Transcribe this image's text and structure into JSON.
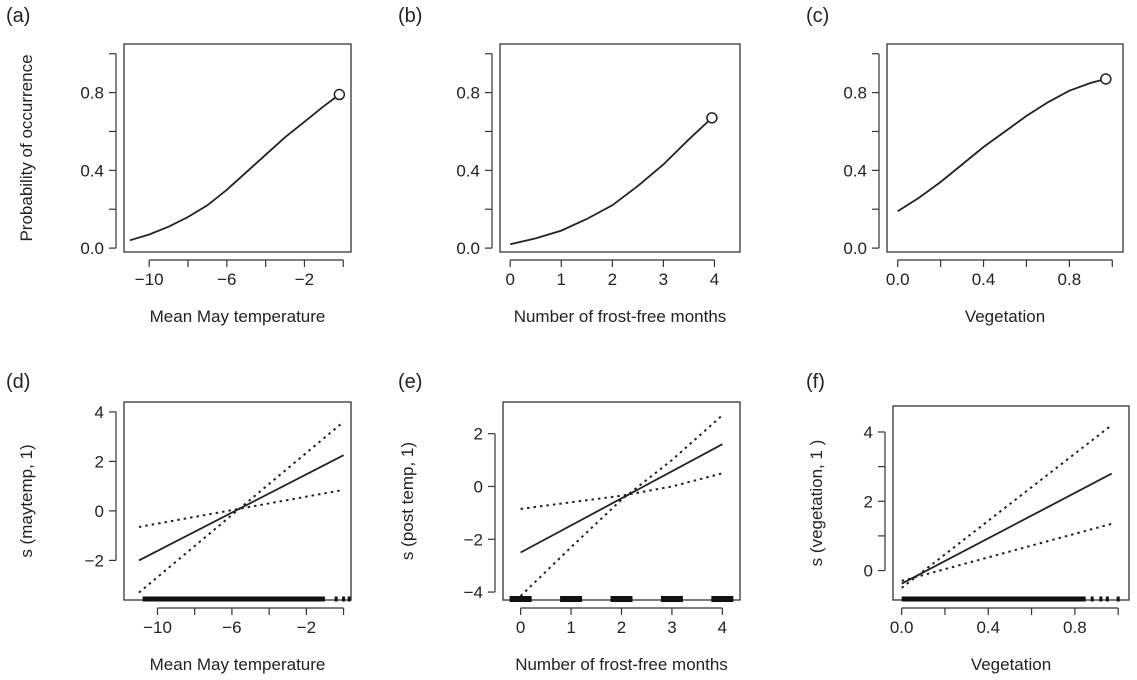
{
  "chart_data": [
    {
      "type": "line",
      "panel_label": "(a)",
      "xlabel": "Mean May temperature",
      "ylabel": "Probability of occurrence",
      "xlim": [
        -11.3,
        0.4
      ],
      "ylim": [
        -0.02,
        1.05
      ],
      "xticks": [
        -10,
        -6,
        -2
      ],
      "xtick_minor": [
        -8,
        -4,
        0
      ],
      "xtick_labels": [
        "−10",
        "−6",
        "−2"
      ],
      "yticks": [
        0.0,
        0.4,
        0.8
      ],
      "ytick_minor": [
        0.2,
        0.6,
        1.0
      ],
      "ytick_labels": [
        "0.0",
        "0.4",
        "0.8"
      ],
      "series": [
        {
          "x": [
            -11,
            -10,
            -9,
            -8,
            -7,
            -6,
            -5,
            -4,
            -3,
            -2,
            -1,
            -0.2
          ],
          "y": [
            0.04,
            0.07,
            0.11,
            0.16,
            0.22,
            0.3,
            0.39,
            0.48,
            0.57,
            0.65,
            0.73,
            0.79
          ],
          "style": "solid"
        }
      ],
      "endpoint": {
        "x": -0.2,
        "y": 0.79
      },
      "rug": false
    },
    {
      "type": "line",
      "panel_label": "(b)",
      "xlabel": "Number of frost-free months",
      "ylabel": "",
      "xlim": [
        -0.2,
        4.5
      ],
      "ylim": [
        -0.02,
        1.05
      ],
      "xticks": [
        0,
        1,
        2,
        3,
        4
      ],
      "xtick_minor": [],
      "xtick_labels": [
        "0",
        "1",
        "2",
        "3",
        "4"
      ],
      "yticks": [
        0.0,
        0.4,
        0.8
      ],
      "ytick_minor": [
        0.2,
        0.6,
        1.0
      ],
      "ytick_labels": [
        "0.0",
        "0.4",
        "0.8"
      ],
      "series": [
        {
          "x": [
            0,
            0.5,
            1,
            1.5,
            2,
            2.5,
            3,
            3.5,
            3.95
          ],
          "y": [
            0.02,
            0.05,
            0.09,
            0.15,
            0.22,
            0.32,
            0.43,
            0.56,
            0.67
          ],
          "style": "solid"
        }
      ],
      "endpoint": {
        "x": 3.95,
        "y": 0.67
      },
      "rug": false
    },
    {
      "type": "line",
      "panel_label": "(c)",
      "xlabel": "Vegetation",
      "ylabel": "",
      "xlim": [
        -0.05,
        1.05
      ],
      "ylim": [
        -0.02,
        1.05
      ],
      "xticks": [
        0.0,
        0.4,
        0.8
      ],
      "xtick_minor": [
        0.2,
        0.6,
        1.0
      ],
      "xtick_labels": [
        "0.0",
        "0.4",
        "0.8"
      ],
      "yticks": [
        0.0,
        0.4,
        0.8
      ],
      "ytick_minor": [
        0.2,
        0.6,
        1.0
      ],
      "ytick_labels": [
        "0.0",
        "0.4",
        "0.8"
      ],
      "series": [
        {
          "x": [
            0,
            0.1,
            0.2,
            0.3,
            0.4,
            0.5,
            0.6,
            0.7,
            0.8,
            0.9,
            0.97
          ],
          "y": [
            0.19,
            0.26,
            0.34,
            0.43,
            0.52,
            0.6,
            0.68,
            0.75,
            0.81,
            0.85,
            0.87
          ],
          "style": "solid"
        }
      ],
      "endpoint": {
        "x": 0.97,
        "y": 0.87
      },
      "rug": false
    },
    {
      "type": "line",
      "panel_label": "(d)",
      "xlabel": "Mean May temperature",
      "ylabel": "s (maytemp, 1)",
      "xlim": [
        -11.8,
        0.4
      ],
      "ylim": [
        -3.6,
        4.4
      ],
      "xticks": [
        -10,
        -6,
        -2
      ],
      "xtick_minor": [
        -8,
        -4,
        0
      ],
      "xtick_labels": [
        "−10",
        "−6",
        "−2"
      ],
      "yticks": [
        -2,
        0,
        2,
        4
      ],
      "ytick_minor": [],
      "ytick_labels": [
        "−2",
        "0",
        "2",
        "4"
      ],
      "series": [
        {
          "x": [
            -11,
            0
          ],
          "y": [
            -2.0,
            2.25
          ],
          "style": "solid"
        },
        {
          "x": [
            -11,
            0
          ],
          "y": [
            -0.65,
            0.85
          ],
          "style": "dotted"
        },
        {
          "x": [
            -11,
            0
          ],
          "y": [
            -3.3,
            3.6
          ],
          "style": "dotted"
        }
      ],
      "rug": true,
      "rug_dense": [
        -10.8,
        -1.0
      ],
      "rug_sparse": [
        -0.4,
        0.0,
        0.3
      ]
    },
    {
      "type": "line",
      "panel_label": "(e)",
      "xlabel": "Number of frost-free months",
      "ylabel": "s (post temp, 1)",
      "xlim": [
        -0.35,
        4.35
      ],
      "ylim": [
        -4.3,
        3.2
      ],
      "xticks": [
        0,
        1,
        2,
        3,
        4
      ],
      "xtick_minor": [],
      "xtick_labels": [
        "0",
        "1",
        "2",
        "3",
        "4"
      ],
      "yticks": [
        -4,
        -2,
        0,
        2
      ],
      "ytick_minor": [],
      "ytick_labels": [
        "−4",
        "−2",
        "0",
        "2"
      ],
      "series": [
        {
          "x": [
            0,
            4
          ],
          "y": [
            -2.5,
            1.6
          ],
          "style": "solid"
        },
        {
          "x": [
            0,
            1,
            2,
            3,
            4
          ],
          "y": [
            -0.85,
            -0.6,
            -0.35,
            0.0,
            0.5
          ],
          "style": "dotted"
        },
        {
          "x": [
            0,
            1,
            2,
            3,
            4
          ],
          "y": [
            -4.15,
            -2.3,
            -0.5,
            1.0,
            2.7
          ],
          "style": "dotted"
        }
      ],
      "rug": true,
      "rug_clusters": [
        0,
        1,
        2,
        3,
        4
      ]
    },
    {
      "type": "line",
      "panel_label": "(f)",
      "xlabel": "Vegetation",
      "ylabel": "s (vegetation, 1 )",
      "xlim": [
        -0.04,
        1.05
      ],
      "ylim": [
        -0.85,
        4.75
      ],
      "xticks": [
        0.0,
        0.4,
        0.8
      ],
      "xtick_minor": [
        0.2,
        0.6,
        1.0
      ],
      "xtick_labels": [
        "0.0",
        "0.4",
        "0.8"
      ],
      "yticks": [
        0,
        2,
        4
      ],
      "ytick_minor": [
        1,
        3
      ],
      "ytick_labels": [
        "0",
        "2",
        "4"
      ],
      "series": [
        {
          "x": [
            0,
            0.97
          ],
          "y": [
            -0.38,
            2.8
          ],
          "style": "solid"
        },
        {
          "x": [
            0,
            0.97
          ],
          "y": [
            -0.3,
            1.35
          ],
          "style": "dotted"
        },
        {
          "x": [
            0,
            0.97
          ],
          "y": [
            -0.5,
            4.2
          ],
          "style": "dotted"
        }
      ],
      "rug": true,
      "rug_dense": [
        0.0,
        0.85
      ],
      "rug_sparse": [
        0.88,
        0.92,
        0.95,
        1.0
      ]
    }
  ]
}
